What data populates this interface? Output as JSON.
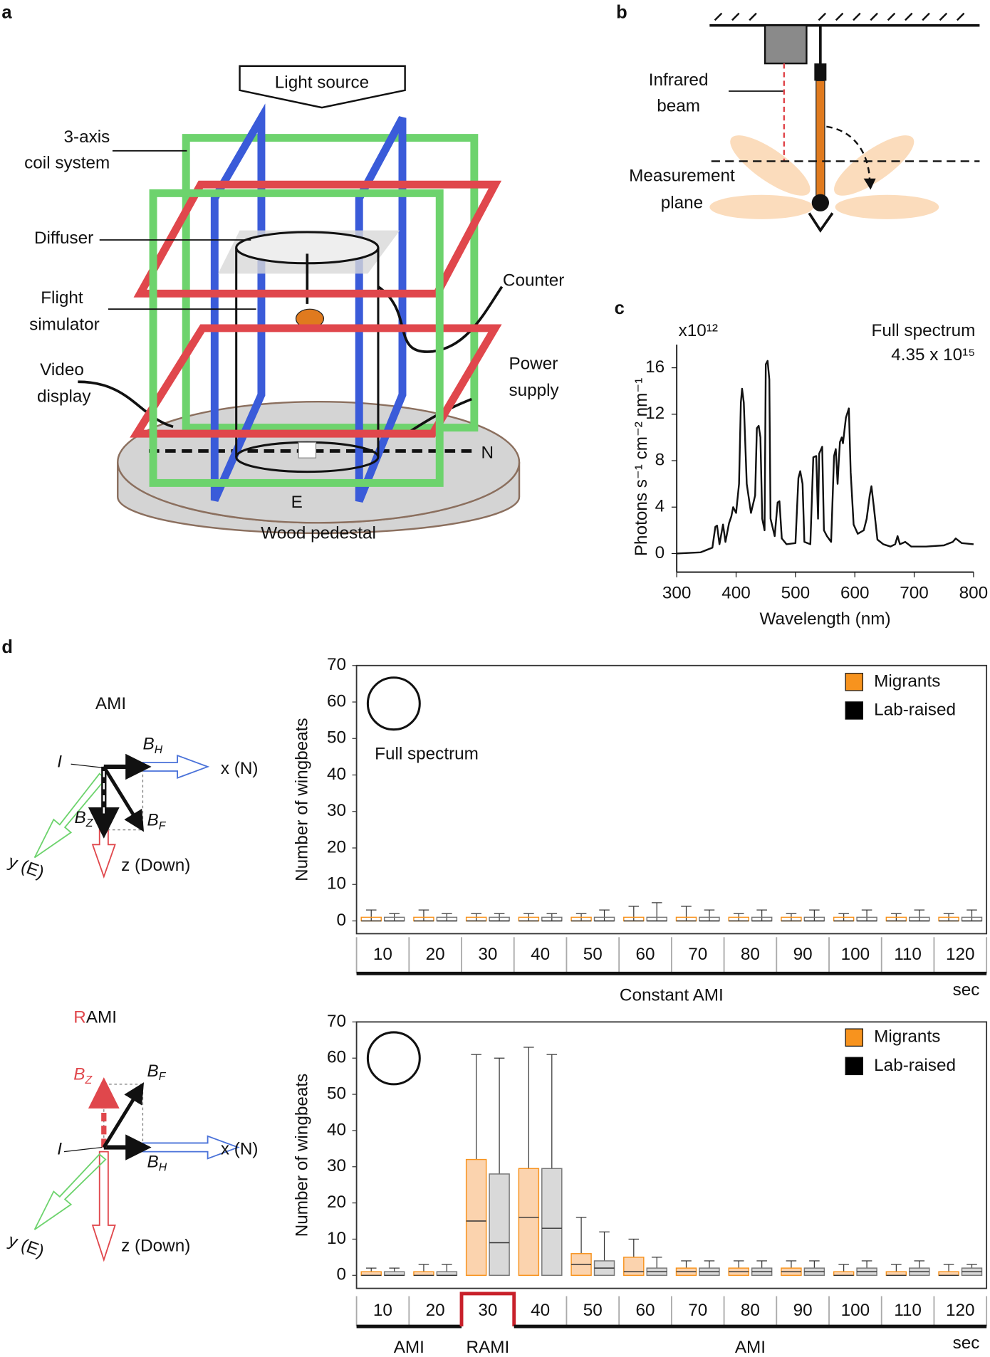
{
  "panel_a": {
    "label": "a",
    "light_source": "Light source",
    "coil_system": [
      "3-axis",
      "coil system"
    ],
    "diffuser": "Diffuser",
    "flight_simulator": [
      "Flight",
      "simulator"
    ],
    "video_display": [
      "Video",
      "display"
    ],
    "counter": "Counter",
    "power_supply": [
      "Power",
      "supply"
    ],
    "north": "N",
    "east": "E",
    "pedestal": "Wood pedestal"
  },
  "panel_b": {
    "label": "b",
    "infrared_beam": [
      "Infrared",
      "beam"
    ],
    "measurement_plane": [
      "Measurement",
      "plane"
    ]
  },
  "panel_c": {
    "label": "c"
  },
  "panel_d": {
    "label": "d",
    "ami": {
      "title": "AMI",
      "I": "I",
      "BH": {
        "main": "B",
        "sub": "H"
      },
      "BZ": {
        "main": "B",
        "sub": "Z"
      },
      "BF": {
        "main": "B",
        "sub": "F"
      },
      "x": "x (N)",
      "y": "y (E)",
      "z": "z (Down)"
    },
    "rami": {
      "title": [
        "R",
        "AMI"
      ],
      "I": "I",
      "BH": {
        "main": "B",
        "sub": "H"
      },
      "BZ": {
        "main": "B",
        "sub": "Z"
      },
      "BF": {
        "main": "B",
        "sub": "F"
      },
      "x": "x (N)",
      "y": "y (E)",
      "z": "z (Down)"
    }
  },
  "chart_data": [
    {
      "type": "line",
      "title": "Full spectrum",
      "annotation": "4.35 x 10¹⁵",
      "multiplier": "x10¹²",
      "xlabel": "Wavelength (nm)",
      "ylabel": "Photons s⁻¹ cm⁻² nm⁻¹",
      "color": "#111111",
      "x": [
        300,
        340,
        350,
        360,
        365,
        368,
        372,
        378,
        382,
        388,
        392,
        395,
        400,
        405,
        408,
        410,
        413,
        418,
        425,
        432,
        435,
        438,
        441,
        444,
        448,
        450,
        453,
        456,
        458,
        465,
        470,
        473,
        477,
        485,
        500,
        505,
        508,
        512,
        515,
        525,
        530,
        535,
        538,
        540,
        545,
        548,
        553,
        560,
        565,
        568,
        571,
        573,
        575,
        578,
        580,
        585,
        590,
        593,
        598,
        605,
        615,
        620,
        625,
        628,
        632,
        638,
        648,
        660,
        668,
        672,
        676,
        685,
        695,
        720,
        750,
        765,
        770,
        780,
        800
      ],
      "values": [
        0,
        0.1,
        0.3,
        0.5,
        2.3,
        2.4,
        0.8,
        2.5,
        1.0,
        2.6,
        3.2,
        4.0,
        3.5,
        6,
        13,
        14.2,
        13,
        6,
        3.5,
        5,
        10.8,
        11,
        10,
        3,
        2,
        16.3,
        16.6,
        15,
        3,
        1.5,
        4.4,
        4.5,
        1.3,
        0.8,
        0.9,
        6.5,
        7.1,
        6,
        1,
        0.8,
        8.3,
        8.4,
        3,
        8.6,
        9.2,
        2,
        1.5,
        1,
        8.4,
        9,
        6,
        8,
        9.6,
        10,
        9.5,
        11.7,
        12.5,
        7,
        2.5,
        1.7,
        2,
        3,
        5,
        5.8,
        4,
        1.2,
        0.8,
        0.6,
        0.8,
        1.5,
        0.8,
        1.0,
        0.6,
        0.6,
        0.7,
        1.0,
        1.3,
        0.9,
        0.8
      ],
      "xlim": [
        300,
        800
      ],
      "xticks": [
        300,
        400,
        500,
        600,
        700,
        800
      ],
      "ylim": [
        -1.6,
        18
      ],
      "yticks": [
        0,
        4,
        8,
        12,
        16
      ]
    },
    {
      "type": "box",
      "annotation": "Full spectrum",
      "ylabel": "Number of wingbeats",
      "unit": "sec",
      "legend": "upper right",
      "categories": [
        "10",
        "20",
        "30",
        "40",
        "50",
        "60",
        "70",
        "80",
        "90",
        "100",
        "110",
        "120"
      ],
      "periods": [
        {
          "label": "Constant AMI",
          "span": [
            0,
            11
          ]
        }
      ],
      "ylim": [
        -3.5,
        70
      ],
      "yticks": [
        0,
        10,
        20,
        30,
        40,
        50,
        60,
        70
      ],
      "series": [
        {
          "name": "Migrants",
          "color": "#f7931e",
          "fill": "none",
          "min": [
            0,
            0,
            0,
            0,
            0,
            0,
            0,
            0,
            0,
            0,
            0,
            0
          ],
          "q1": [
            0,
            0,
            0,
            0,
            0,
            0,
            0,
            0,
            0,
            0,
            0,
            0
          ],
          "median": [
            0,
            0,
            0,
            0,
            0,
            0,
            0,
            0,
            0,
            0,
            0,
            0
          ],
          "q3": [
            1,
            1,
            1,
            1,
            1,
            1,
            1,
            1,
            1,
            1,
            1,
            1
          ],
          "max": [
            3,
            3,
            2,
            2,
            2,
            4,
            4,
            2,
            2,
            2,
            2,
            2
          ]
        },
        {
          "name": "Lab-raised",
          "color": "#000000",
          "fill": "none",
          "min": [
            0,
            0,
            0,
            0,
            0,
            0,
            0,
            0,
            0,
            0,
            0,
            0
          ],
          "q1": [
            0,
            0,
            0,
            0,
            0,
            0,
            0,
            0,
            0,
            0,
            0,
            0
          ],
          "median": [
            0,
            0,
            0,
            0,
            0,
            0,
            0,
            0,
            0,
            0,
            0,
            0
          ],
          "q3": [
            1,
            1,
            1,
            1,
            1,
            1,
            1,
            1,
            1,
            1,
            1,
            1
          ],
          "max": [
            2,
            2,
            2,
            2,
            3,
            5,
            3,
            3,
            3,
            3,
            3,
            3
          ]
        }
      ]
    },
    {
      "type": "box",
      "ylabel": "Number of wingbeats",
      "unit": "sec",
      "legend": "upper right",
      "categories": [
        "10",
        "20",
        "30",
        "40",
        "50",
        "60",
        "70",
        "80",
        "90",
        "100",
        "110",
        "120"
      ],
      "periods": [
        {
          "label": "AMI",
          "span": [
            0,
            1
          ]
        },
        {
          "label": "RAMI",
          "span": [
            2,
            2
          ],
          "color": "#c8202a"
        },
        {
          "label": "AMI",
          "span": [
            3,
            11
          ]
        }
      ],
      "ylim": [
        -3.6,
        70
      ],
      "yticks": [
        0,
        10,
        20,
        30,
        40,
        50,
        60,
        70
      ],
      "series": [
        {
          "name": "Migrants",
          "color": "#f7931e",
          "fill": "#fbd3ae",
          "min": [
            0,
            0,
            0,
            0,
            0,
            0,
            0,
            0,
            0,
            0,
            0,
            0
          ],
          "q1": [
            0,
            0,
            0,
            0,
            0,
            0,
            0,
            0,
            0,
            0,
            0,
            0
          ],
          "median": [
            0,
            0,
            15,
            16,
            3,
            1,
            1,
            1,
            1,
            0,
            0,
            0
          ],
          "q3": [
            1,
            1,
            32,
            29.5,
            6,
            5,
            2,
            2,
            2,
            1,
            1,
            1
          ],
          "max": [
            2,
            3,
            61,
            63,
            16,
            10,
            4,
            4,
            4,
            3,
            3,
            3
          ]
        },
        {
          "name": "Lab-raised",
          "color": "#000000",
          "fill": "#d9d9d9",
          "min": [
            0,
            0,
            0,
            0,
            0,
            0,
            0,
            0,
            0,
            0,
            0,
            0
          ],
          "q1": [
            0,
            0,
            0,
            0,
            0,
            0,
            0,
            0,
            0,
            0,
            0,
            0
          ],
          "median": [
            0,
            0,
            9,
            13,
            2,
            1,
            1,
            1,
            1,
            1,
            1,
            1
          ],
          "q3": [
            1,
            1,
            28,
            29.5,
            4,
            2,
            2,
            2,
            2,
            2,
            2,
            2
          ],
          "max": [
            2,
            3,
            60,
            61,
            12,
            5,
            4,
            4,
            4,
            4,
            4,
            3
          ]
        }
      ]
    }
  ]
}
